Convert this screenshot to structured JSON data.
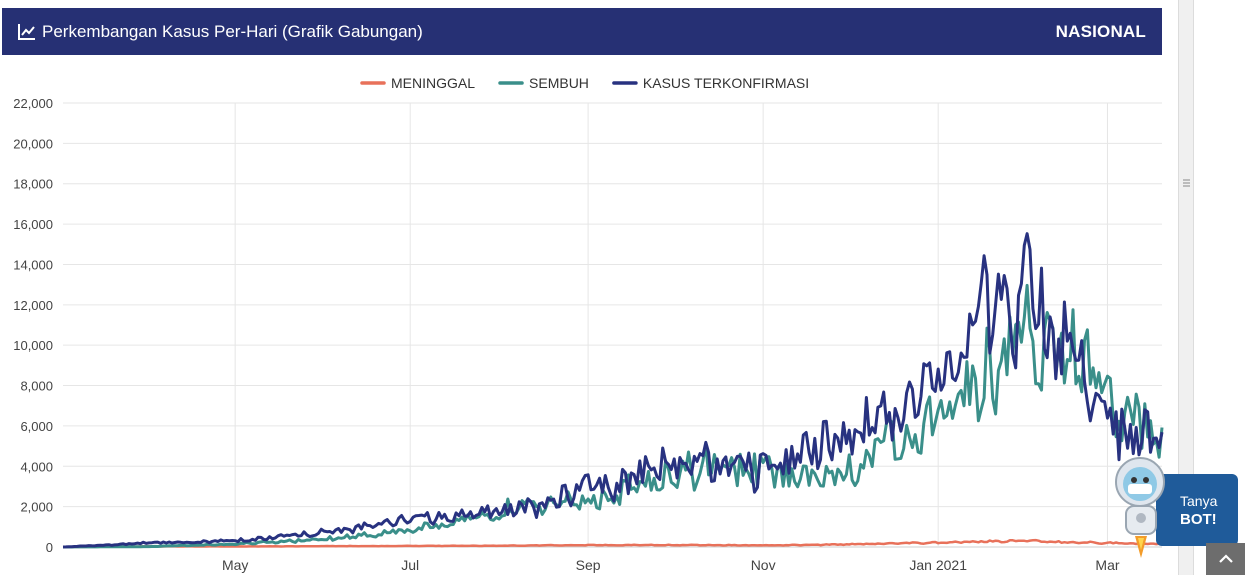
{
  "header": {
    "title": "Perkembangan Kasus Per-Hari (Grafik Gabungan)",
    "region": "NASIONAL",
    "icon": "line-chart-icon",
    "background": "#263074"
  },
  "bot": {
    "line1": "Tanya",
    "line2": "BOT!",
    "icon": "robot-mascot-icon"
  },
  "scroll_top": {
    "icon": "chevron-up-icon"
  },
  "chart_data": {
    "type": "line",
    "title": "Perkembangan Kasus Per-Hari (Grafik Gabungan)",
    "xlabel": "",
    "ylabel": "",
    "x_start": "2020-03-02",
    "x_end": "2021-03-20",
    "x_ticks": [
      {
        "date": "2020-05-01",
        "label": "May"
      },
      {
        "date": "2020-07-01",
        "label": "Jul"
      },
      {
        "date": "2020-09-01",
        "label": "Sep"
      },
      {
        "date": "2020-11-01",
        "label": "Nov"
      },
      {
        "date": "2021-01-01",
        "label": "Jan 2021"
      },
      {
        "date": "2021-03-01",
        "label": "Mar"
      }
    ],
    "ylim": [
      0,
      22000
    ],
    "y_ticks": [
      0,
      2000,
      4000,
      6000,
      8000,
      10000,
      12000,
      14000,
      16000,
      18000,
      20000,
      22000
    ],
    "y_tick_labels": [
      "0",
      "2,000",
      "4,000",
      "6,000",
      "8,000",
      "10,000",
      "12,000",
      "14,000",
      "16,000",
      "18,000",
      "20,000",
      "22,000"
    ],
    "grid": true,
    "legend_position": "top-center",
    "series": [
      {
        "name": "MENINGGAL",
        "color": "#e8715a",
        "points": [
          [
            "2020-03-02",
            0
          ],
          [
            "2020-04-01",
            30
          ],
          [
            "2020-05-01",
            25
          ],
          [
            "2020-06-01",
            40
          ],
          [
            "2020-07-01",
            50
          ],
          [
            "2020-08-01",
            65
          ],
          [
            "2020-09-01",
            90
          ],
          [
            "2020-10-01",
            100
          ],
          [
            "2020-11-01",
            80
          ],
          [
            "2020-12-01",
            130
          ],
          [
            "2021-01-01",
            220
          ],
          [
            "2021-01-15",
            270
          ],
          [
            "2021-02-01",
            300
          ],
          [
            "2021-02-15",
            250
          ],
          [
            "2021-03-01",
            200
          ],
          [
            "2021-03-10",
            170
          ],
          [
            "2021-03-20",
            140
          ]
        ]
      },
      {
        "name": "SEMBUH",
        "color": "#3a8f8a",
        "points": [
          [
            "2020-03-02",
            0
          ],
          [
            "2020-04-01",
            20
          ],
          [
            "2020-05-01",
            150
          ],
          [
            "2020-06-01",
            400
          ],
          [
            "2020-07-01",
            800
          ],
          [
            "2020-07-20",
            1300
          ],
          [
            "2020-08-01",
            1800
          ],
          [
            "2020-08-15",
            2000
          ],
          [
            "2020-09-01",
            2300
          ],
          [
            "2020-09-15",
            2800
          ],
          [
            "2020-10-01",
            3500
          ],
          [
            "2020-10-15",
            4100
          ],
          [
            "2020-11-01",
            3900
          ],
          [
            "2020-11-15",
            3300
          ],
          [
            "2020-12-01",
            3800
          ],
          [
            "2020-12-15",
            5200
          ],
          [
            "2021-01-01",
            6800
          ],
          [
            "2021-01-15",
            8000
          ],
          [
            "2021-02-01",
            10500
          ],
          [
            "2021-02-15",
            10200
          ],
          [
            "2021-03-01",
            7500
          ],
          [
            "2021-03-10",
            6800
          ],
          [
            "2021-03-20",
            5500
          ]
        ]
      },
      {
        "name": "KASUS TERKONFIRMASI",
        "color": "#283280",
        "points": [
          [
            "2020-03-02",
            0
          ],
          [
            "2020-04-01",
            200
          ],
          [
            "2020-05-01",
            300
          ],
          [
            "2020-06-01",
            700
          ],
          [
            "2020-07-01",
            1300
          ],
          [
            "2020-07-20",
            1600
          ],
          [
            "2020-08-01",
            1800
          ],
          [
            "2020-08-15",
            2000
          ],
          [
            "2020-09-01",
            2900
          ],
          [
            "2020-09-15",
            3300
          ],
          [
            "2020-10-01",
            4100
          ],
          [
            "2020-10-15",
            4200
          ],
          [
            "2020-11-01",
            3700
          ],
          [
            "2020-11-15",
            4500
          ],
          [
            "2020-12-01",
            5700
          ],
          [
            "2020-12-15",
            6300
          ],
          [
            "2021-01-01",
            8500
          ],
          [
            "2021-01-15",
            11500
          ],
          [
            "2021-01-30",
            12500
          ],
          [
            "2021-02-15",
            9500
          ],
          [
            "2021-03-01",
            6200
          ],
          [
            "2021-03-10",
            5500
          ],
          [
            "2021-03-20",
            5300
          ]
        ]
      }
    ]
  }
}
